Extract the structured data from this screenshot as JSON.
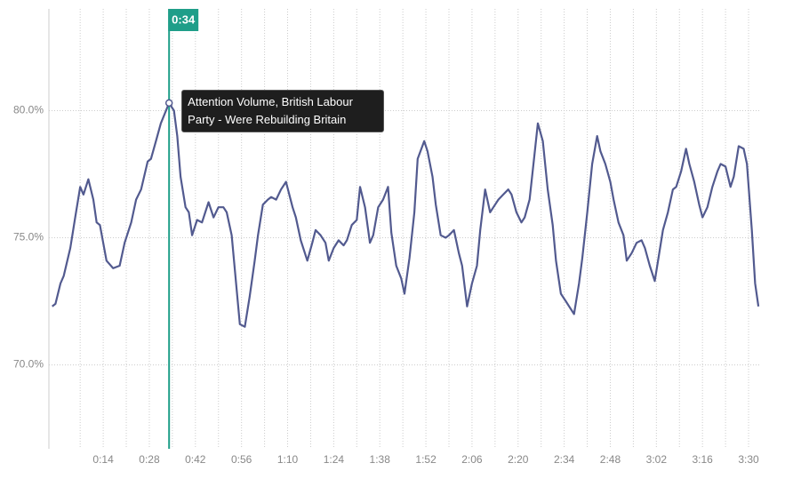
{
  "chart_data": {
    "type": "line",
    "x": [
      -1.5,
      -0.5,
      1,
      2,
      4,
      5.5,
      7,
      8,
      9.5,
      11,
      12,
      13,
      15,
      17,
      19,
      20.5,
      22.5,
      24,
      25.5,
      27.5,
      28.5,
      30,
      31.5,
      34,
      35.5,
      36.5,
      37.5,
      39,
      40,
      41,
      42.5,
      44,
      45,
      46,
      47.5,
      49,
      50.5,
      51.5,
      53,
      54.5,
      55.5,
      57,
      58.5,
      60,
      61,
      62.5,
      64,
      65,
      66.5,
      68,
      69.5,
      71.5,
      72.5,
      74,
      76,
      77.5,
      78.5,
      80,
      81.5,
      82.5,
      84,
      85.5,
      87,
      88,
      89.5,
      91,
      92,
      93.5,
      95,
      96,
      97.5,
      99,
      100.5,
      101.5,
      103,
      104.5,
      105.5,
      107,
      108.5,
      109.5,
      111.5,
      112.5,
      114,
      115,
      116.5,
      118,
      119,
      120.5,
      122,
      123,
      124.5,
      126,
      127.5,
      128.5,
      130,
      131.5,
      132.5,
      134,
      135.5,
      137,
      138,
      139.5,
      141,
      142,
      143.5,
      145,
      146,
      147.5,
      149,
      150.5,
      151.5,
      153,
      154.5,
      155.5,
      157,
      158.5,
      159.5,
      161,
      162.5,
      164,
      165,
      166.5,
      168,
      169,
      170.5,
      172,
      173,
      174.5,
      176,
      177.5,
      178.5,
      180,
      181.5,
      182.5,
      184,
      185.5,
      187,
      188,
      189.5,
      191,
      192,
      193.5,
      195,
      196,
      197.5,
      199,
      200.5,
      201.5,
      203,
      204.5,
      205.5,
      207,
      208.5,
      209.5,
      211,
      212,
      213
    ],
    "series": [
      {
        "name": "Attention Volume, British Labour Party - Were Rebuilding Britain",
        "color": "#525a8f",
        "values": [
          72.3,
          72.4,
          73.2,
          73.5,
          74.6,
          75.8,
          77.0,
          76.7,
          77.3,
          76.5,
          75.6,
          75.5,
          74.1,
          73.8,
          73.9,
          74.8,
          75.6,
          76.5,
          76.9,
          78.0,
          78.1,
          78.8,
          79.5,
          80.3,
          80.0,
          79.0,
          77.4,
          76.2,
          76.0,
          75.1,
          75.7,
          75.6,
          76.0,
          76.4,
          75.8,
          76.2,
          76.2,
          76.0,
          75.1,
          73.0,
          71.6,
          71.5,
          72.7,
          74.1,
          75.1,
          76.3,
          76.5,
          76.6,
          76.5,
          76.9,
          77.2,
          76.2,
          75.8,
          74.9,
          74.1,
          74.8,
          75.3,
          75.1,
          74.8,
          74.1,
          74.6,
          74.9,
          74.7,
          74.9,
          75.5,
          75.7,
          77.0,
          76.2,
          74.8,
          75.1,
          76.2,
          76.5,
          77.0,
          75.2,
          73.9,
          73.4,
          72.8,
          74.2,
          76.0,
          78.1,
          78.8,
          78.4,
          77.4,
          76.3,
          75.1,
          75.0,
          75.1,
          75.3,
          74.4,
          73.9,
          72.3,
          73.2,
          73.9,
          75.3,
          76.9,
          76.0,
          76.2,
          76.5,
          76.7,
          76.9,
          76.7,
          76.0,
          75.6,
          75.8,
          76.5,
          78.3,
          79.5,
          78.8,
          76.9,
          75.5,
          74.1,
          72.8,
          72.5,
          72.3,
          72.0,
          73.2,
          74.2,
          76.0,
          77.9,
          79.0,
          78.4,
          77.9,
          77.2,
          76.5,
          75.6,
          75.1,
          74.1,
          74.4,
          74.8,
          74.9,
          74.6,
          73.9,
          73.3,
          74.1,
          75.3,
          76.0,
          76.9,
          77.0,
          77.6,
          78.5,
          77.9,
          77.2,
          76.3,
          75.8,
          76.2,
          77.0,
          77.6,
          77.9,
          77.8,
          77.0,
          77.4,
          78.6,
          78.5,
          77.9,
          75.3,
          73.2,
          72.3
        ]
      }
    ],
    "xlim": [
      -2.5,
      213.5
    ],
    "xticks": [
      {
        "value": 14,
        "label": "0:14"
      },
      {
        "value": 28,
        "label": "0:28"
      },
      {
        "value": 42,
        "label": "0:42"
      },
      {
        "value": 56,
        "label": "0:56"
      },
      {
        "value": 70,
        "label": "1:10"
      },
      {
        "value": 84,
        "label": "1:24"
      },
      {
        "value": 98,
        "label": "1:38"
      },
      {
        "value": 112,
        "label": "1:52"
      },
      {
        "value": 126,
        "label": "2:06"
      },
      {
        "value": 140,
        "label": "2:20"
      },
      {
        "value": 154,
        "label": "2:34"
      },
      {
        "value": 168,
        "label": "2:48"
      },
      {
        "value": 182,
        "label": "3:02"
      },
      {
        "value": 196,
        "label": "3:16"
      },
      {
        "value": 210,
        "label": "3:30"
      }
    ],
    "ylim": [
      66.7,
      84
    ],
    "yticks": [
      {
        "value": 70,
        "label": "70.0%"
      },
      {
        "value": 75,
        "label": "75.0%"
      },
      {
        "value": 80,
        "label": "80.0%"
      }
    ],
    "grid": true,
    "cursor": {
      "x": 34,
      "label": "0:34",
      "color": "#1f9e89"
    }
  }
}
